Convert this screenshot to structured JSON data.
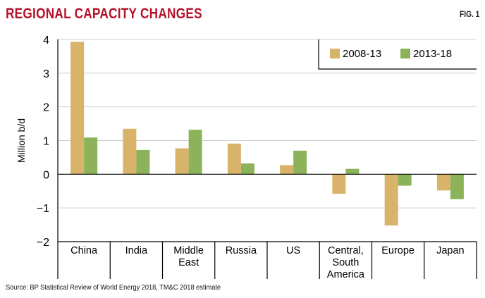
{
  "header": {
    "title": "REGIONAL CAPACITY CHANGES",
    "figure_label": "FIG. 1"
  },
  "footer": {
    "source": "Source: BP Statistical Review of World Energy 2018, TM&C 2018 estimate"
  },
  "colors": {
    "title": "#b5122b",
    "series_1": "#d8b36a",
    "series_2": "#8cb35a",
    "grid": "#cfcfcf",
    "axis": "#000000"
  },
  "chart_data": {
    "type": "bar",
    "ylabel": "Million b/d",
    "ylim": [
      -2,
      4
    ],
    "yticks": [
      4,
      3,
      2,
      1,
      0,
      -1,
      -2
    ],
    "ytick_labels": [
      "4",
      "3",
      "2",
      "1",
      "0",
      "−1",
      "−2"
    ],
    "grid": true,
    "legend_position": "top-right",
    "categories": [
      [
        "China"
      ],
      [
        "India"
      ],
      [
        "Middle",
        "East"
      ],
      [
        "Russia"
      ],
      [
        "US"
      ],
      [
        "Central,",
        "South",
        "America"
      ],
      [
        "Europe"
      ],
      [
        "Japan"
      ]
    ],
    "series": [
      {
        "name": "2008-13",
        "values": [
          3.93,
          1.35,
          0.77,
          0.91,
          0.27,
          -0.58,
          -1.52,
          -0.48
        ]
      },
      {
        "name": "2013-18",
        "values": [
          1.09,
          0.72,
          1.32,
          0.32,
          0.7,
          0.16,
          -0.34,
          -0.74
        ]
      }
    ]
  }
}
